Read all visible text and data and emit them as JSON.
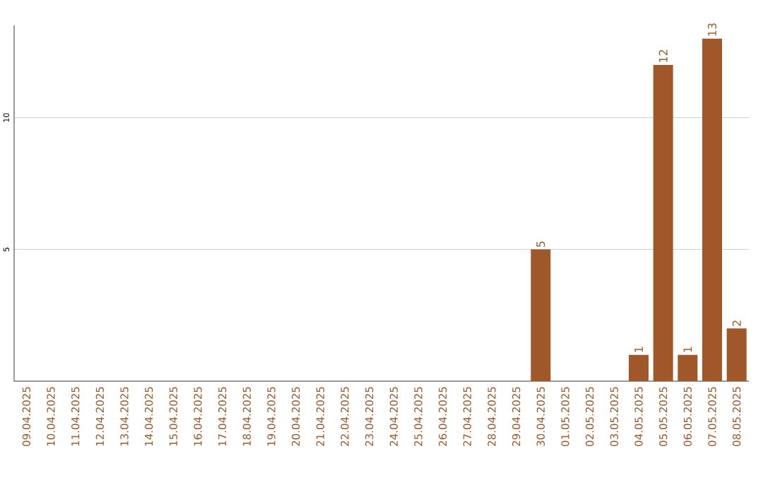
{
  "chart_data": {
    "type": "bar",
    "categories": [
      "09.04.2025",
      "10.04.2025",
      "11.04.2025",
      "12.04.2025",
      "13.04.2025",
      "14.04.2025",
      "15.04.2025",
      "16.04.2025",
      "17.04.2025",
      "18.04.2025",
      "19.04.2025",
      "20.04.2025",
      "21.04.2025",
      "22.04.2025",
      "23.04.2025",
      "24.04.2025",
      "25.04.2025",
      "26.04.2025",
      "27.04.2025",
      "28.04.2025",
      "29.04.2025",
      "30.04.2025",
      "01.05.2025",
      "02.05.2025",
      "03.05.2025",
      "04.05.2025",
      "05.05.2025",
      "06.05.2025",
      "07.05.2025",
      "08.05.2025"
    ],
    "values": [
      0,
      0,
      0,
      0,
      0,
      0,
      0,
      0,
      0,
      0,
      0,
      0,
      0,
      0,
      0,
      0,
      0,
      0,
      0,
      0,
      0,
      5,
      0,
      0,
      0,
      1,
      12,
      1,
      13,
      2
    ],
    "value_labels": [
      null,
      null,
      null,
      null,
      null,
      null,
      null,
      null,
      null,
      null,
      null,
      null,
      null,
      null,
      null,
      null,
      null,
      null,
      null,
      null,
      null,
      "5",
      null,
      null,
      null,
      "1",
      "12",
      "1",
      "13",
      "2"
    ],
    "color": "#a0582a",
    "ylim": [
      0,
      13.5
    ],
    "yticks": [
      5,
      10
    ],
    "grid": "y"
  }
}
